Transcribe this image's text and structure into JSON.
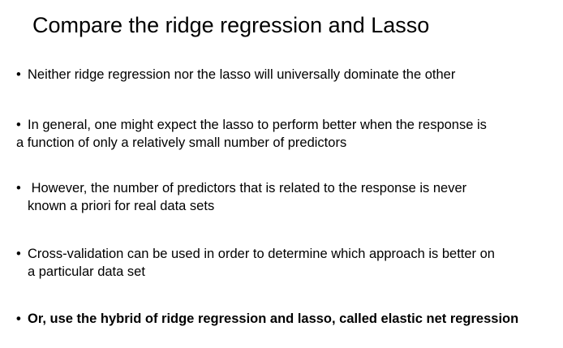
{
  "slide": {
    "title": "Compare the ridge regression and Lasso",
    "bullet_symbol": "•",
    "bullets": [
      {
        "lines": [
          "Neither ridge regression nor the lasso will universally dominate the other"
        ]
      },
      {
        "lines": [
          "In general, one might expect the lasso to perform better when the response is",
          "a function of only a relatively small number of predictors"
        ]
      },
      {
        "lines": [
          "However, the number of predictors that is related to the response is never",
          "known a priori for real data sets"
        ]
      },
      {
        "lines": [
          "Cross-validation can be used in order to determine which approach is better on",
          "a particular data set"
        ]
      },
      {
        "lines": [
          "Or, use the hybrid of ridge regression and lasso, called elastic net regression"
        ]
      }
    ]
  }
}
